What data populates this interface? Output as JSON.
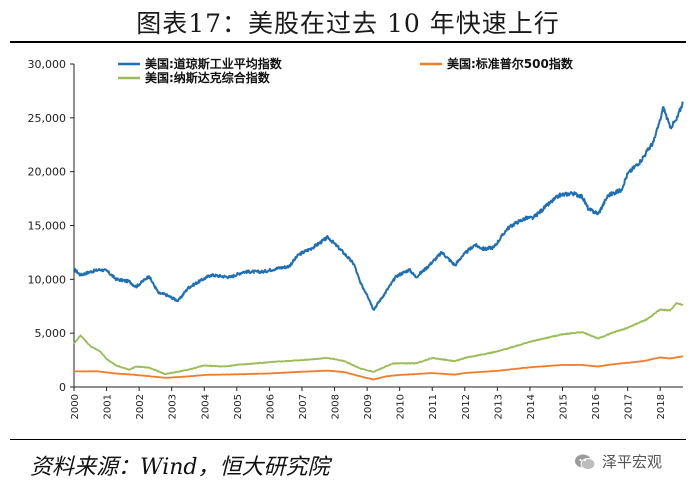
{
  "title": "图表17：美股在过去 10 年快速上行",
  "source": "资料来源：Wind，恒大研究院",
  "watermark": "泽平宏观",
  "chart_data": {
    "type": "line",
    "x_unit": "year",
    "x_ticks": [
      "2000",
      "2001",
      "2002",
      "2003",
      "2004",
      "2005",
      "2006",
      "2007",
      "2008",
      "2009",
      "2010",
      "2011",
      "2012",
      "2013",
      "2014",
      "2015",
      "2016",
      "2017",
      "2018"
    ],
    "xlim": [
      2000,
      2018.7
    ],
    "ylim": [
      0,
      30000
    ],
    "y_ticks": [
      0,
      5000,
      10000,
      15000,
      20000,
      25000,
      30000
    ],
    "y_tick_labels": [
      "0",
      "5,000",
      "10,000",
      "15,000",
      "20,000",
      "25,000",
      "30,000"
    ],
    "grid": false,
    "legend": "top",
    "series": [
      {
        "name": "美国:道琼斯工业平均指数",
        "color": "#1f6fb4",
        "x": [
          2000.0,
          2000.2,
          2000.5,
          2000.8,
          2001.0,
          2001.3,
          2001.7,
          2001.9,
          2002.3,
          2002.6,
          2002.8,
          2003.2,
          2003.5,
          2003.9,
          2004.2,
          2004.8,
          2005.2,
          2005.8,
          2006.2,
          2006.6,
          2006.9,
          2007.3,
          2007.8,
          2008.0,
          2008.3,
          2008.6,
          2008.8,
          2009.0,
          2009.2,
          2009.5,
          2009.9,
          2010.3,
          2010.5,
          2010.8,
          2011.3,
          2011.7,
          2011.9,
          2012.3,
          2012.6,
          2012.9,
          2013.3,
          2013.6,
          2013.9,
          2014.1,
          2014.5,
          2014.9,
          2015.3,
          2015.6,
          2015.8,
          2016.1,
          2016.4,
          2016.8,
          2017.0,
          2017.4,
          2017.8,
          2018.0,
          2018.1,
          2018.3,
          2018.5,
          2018.7
        ],
        "values": [
          10950,
          10400,
          10700,
          10900,
          10800,
          10000,
          9800,
          9300,
          10300,
          8700,
          8600,
          8000,
          9200,
          9900,
          10400,
          10200,
          10700,
          10700,
          11000,
          11200,
          12300,
          12900,
          13900,
          13300,
          12400,
          11400,
          9600,
          8600,
          7200,
          8500,
          10300,
          10900,
          10200,
          11000,
          12500,
          11300,
          12100,
          13200,
          12800,
          13000,
          14700,
          15300,
          15700,
          15700,
          16800,
          17800,
          18000,
          17700,
          16500,
          16100,
          17800,
          18300,
          19800,
          21000,
          22800,
          24800,
          26000,
          24100,
          24800,
          26500
        ]
      },
      {
        "name": "美国:标准普尔500指数",
        "color": "#ef7d2e",
        "x": [
          2000.0,
          2000.7,
          2001.3,
          2001.8,
          2002.5,
          2002.8,
          2003.5,
          2004.0,
          2005.0,
          2006.0,
          2007.0,
          2007.8,
          2008.3,
          2008.9,
          2009.2,
          2009.6,
          2010.0,
          2011.0,
          2011.7,
          2012.0,
          2013.0,
          2014.0,
          2015.0,
          2015.6,
          2016.1,
          2016.5,
          2017.0,
          2017.5,
          2018.0,
          2018.3,
          2018.7
        ],
        "values": [
          1450,
          1460,
          1250,
          1150,
          950,
          850,
          980,
          1120,
          1180,
          1260,
          1420,
          1520,
          1380,
          900,
          700,
          1000,
          1120,
          1290,
          1150,
          1300,
          1500,
          1830,
          2050,
          2050,
          1900,
          2100,
          2250,
          2420,
          2750,
          2650,
          2850
        ]
      },
      {
        "name": "美国:纳斯达克综合指数",
        "color": "#9bbb59",
        "x": [
          2000.0,
          2000.2,
          2000.5,
          2000.8,
          2001.0,
          2001.3,
          2001.7,
          2001.9,
          2002.3,
          2002.8,
          2003.5,
          2004.0,
          2004.6,
          2005.0,
          2006.0,
          2007.0,
          2007.8,
          2008.3,
          2008.8,
          2009.2,
          2009.8,
          2010.5,
          2011.0,
          2011.7,
          2012.0,
          2013.0,
          2014.0,
          2015.0,
          2015.6,
          2016.1,
          2016.5,
          2017.0,
          2017.6,
          2018.0,
          2018.3,
          2018.5,
          2018.7
        ],
        "values": [
          4000,
          4800,
          3800,
          3300,
          2600,
          2000,
          1600,
          1900,
          1800,
          1200,
          1600,
          2000,
          1900,
          2050,
          2300,
          2500,
          2700,
          2400,
          1700,
          1400,
          2200,
          2200,
          2700,
          2400,
          2700,
          3300,
          4200,
          4900,
          5100,
          4500,
          5000,
          5500,
          6300,
          7200,
          7100,
          7800,
          7600
        ]
      }
    ]
  }
}
